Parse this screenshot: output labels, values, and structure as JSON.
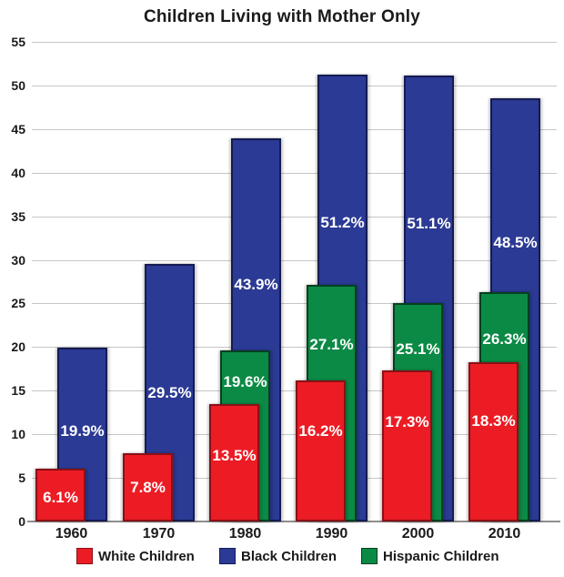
{
  "chart_data": {
    "type": "bar",
    "title": "Children Living with Mother Only",
    "categories": [
      "1960",
      "1970",
      "1980",
      "1990",
      "2000",
      "2010"
    ],
    "series": [
      {
        "name": "White Children",
        "color": "#ec1c24",
        "border_color": "#8b1016",
        "values": [
          6.1,
          7.8,
          13.5,
          16.2,
          17.3,
          18.3
        ],
        "labels": [
          "6.1%",
          "7.8%",
          "13.5%",
          "16.2%",
          "17.3%",
          "18.3%"
        ],
        "label_pos": [
          0.45,
          0.5,
          0.56,
          0.64,
          0.66,
          0.63
        ]
      },
      {
        "name": "Black Children",
        "color": "#2b3a94",
        "border_color": "#151b52",
        "values": [
          19.9,
          29.5,
          43.9,
          51.2,
          51.1,
          48.5
        ],
        "labels": [
          "19.9%",
          "29.5%",
          "43.9%",
          "51.2%",
          "51.1%",
          "48.5%"
        ],
        "label_pos": [
          0.52,
          0.5,
          0.62,
          0.67,
          0.67,
          0.66
        ]
      },
      {
        "name": "Hispanic Children",
        "color": "#0b8a45",
        "border_color": "#04401f",
        "values": [
          null,
          null,
          19.6,
          27.1,
          25.1,
          26.3
        ],
        "labels": [
          "",
          "",
          "19.6%",
          "27.1%",
          "25.1%",
          "26.3%"
        ],
        "label_pos": [
          0,
          0,
          0.82,
          0.75,
          0.79,
          0.8
        ]
      }
    ],
    "ylim": [
      0,
      55
    ],
    "yticks": [
      0,
      5,
      10,
      15,
      20,
      25,
      30,
      35,
      40,
      45,
      50,
      55
    ],
    "grid": true,
    "gridline_color": "#c6c6c6",
    "axis_line_color": "#8f8f8f",
    "value_label_color": "#ffffff",
    "legend_position": "bottom"
  },
  "legend": {
    "items": [
      {
        "label": "White Children",
        "color": "#ec1c24",
        "border_color": "#8b1016"
      },
      {
        "label": "Black Children",
        "color": "#2b3a94",
        "border_color": "#151b52"
      },
      {
        "label": "Hispanic Children",
        "color": "#0b8a45",
        "border_color": "#04401f"
      }
    ]
  }
}
